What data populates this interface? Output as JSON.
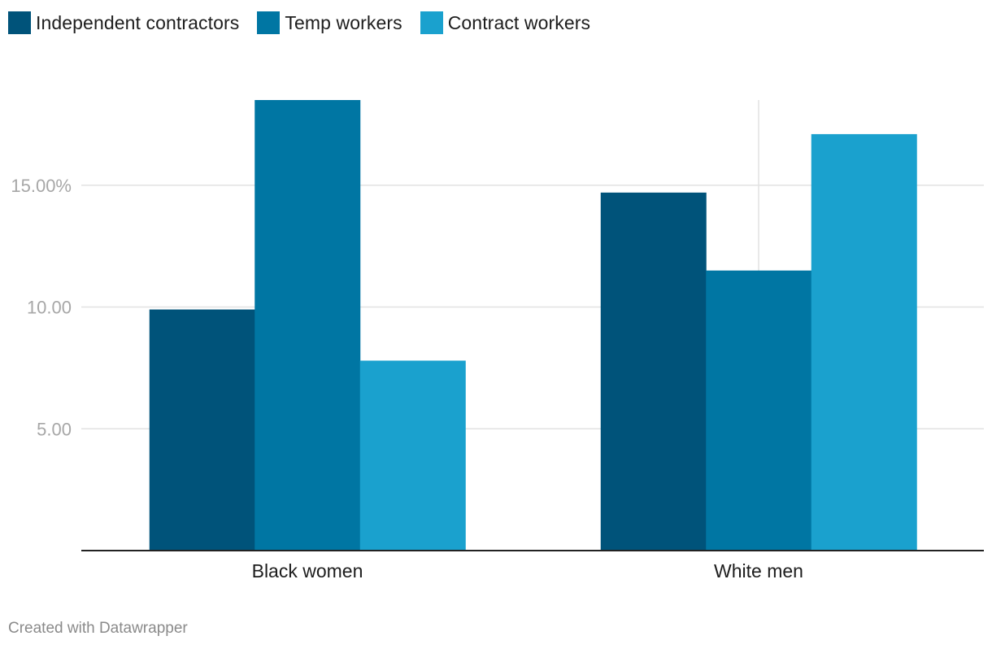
{
  "chart_data": {
    "type": "bar",
    "categories": [
      "Black women",
      "White men"
    ],
    "series": [
      {
        "name": "Independent contractors",
        "color": "#00537a",
        "values": [
          9.9,
          14.7
        ]
      },
      {
        "name": "Temp workers",
        "color": "#0076a3",
        "values": [
          18.5,
          11.5
        ]
      },
      {
        "name": "Contract workers",
        "color": "#1aa1ce",
        "values": [
          7.8,
          17.1
        ]
      }
    ],
    "yticks": [
      {
        "value": 5,
        "label": "5.00"
      },
      {
        "value": 10,
        "label": "10.00"
      },
      {
        "value": 15,
        "label": "15.00%"
      }
    ],
    "ylim": [
      0,
      18.5
    ],
    "title": "",
    "xlabel": "",
    "ylabel": ""
  },
  "footer": {
    "credit": "Created with Datawrapper"
  }
}
